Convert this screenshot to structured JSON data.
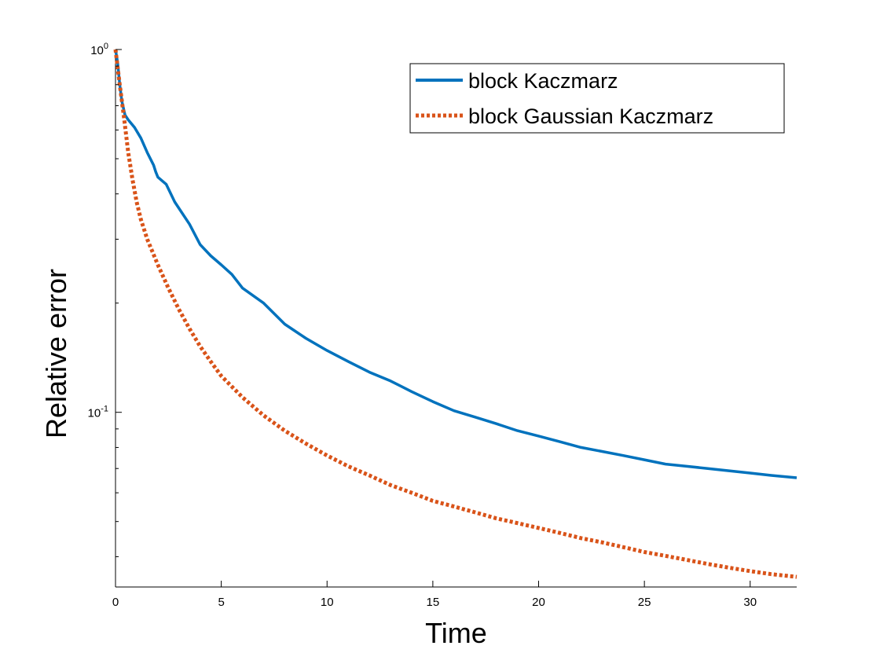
{
  "chart_data": {
    "type": "line",
    "title": "",
    "xlabel": "Time",
    "ylabel": "Relative error",
    "xlim": [
      0,
      32.2
    ],
    "ylim": [
      0.033,
      1.0
    ],
    "yscale": "log",
    "x_ticks": [
      0,
      5,
      10,
      15,
      20,
      25,
      30
    ],
    "y_ticks": [
      {
        "value": 1.0,
        "base": "10",
        "exponent": "0"
      },
      {
        "value": 0.1,
        "base": "10",
        "exponent": "-1"
      }
    ],
    "grid": false,
    "legend_position": "top-right",
    "series": [
      {
        "name": "block Kaczmarz",
        "style": "solid",
        "color": "#0072BD",
        "points": [
          [
            0.0,
            1.0
          ],
          [
            0.1,
            0.92
          ],
          [
            0.2,
            0.8
          ],
          [
            0.3,
            0.72
          ],
          [
            0.45,
            0.66
          ],
          [
            0.6,
            0.64
          ],
          [
            0.9,
            0.61
          ],
          [
            1.2,
            0.57
          ],
          [
            1.5,
            0.52
          ],
          [
            1.8,
            0.48
          ],
          [
            1.9,
            0.46
          ],
          [
            2.0,
            0.445
          ],
          [
            2.4,
            0.425
          ],
          [
            2.8,
            0.38
          ],
          [
            3.5,
            0.33
          ],
          [
            4.0,
            0.29
          ],
          [
            4.5,
            0.27
          ],
          [
            5.0,
            0.255
          ],
          [
            5.5,
            0.24
          ],
          [
            6.0,
            0.22
          ],
          [
            7.0,
            0.2
          ],
          [
            8.0,
            0.175
          ],
          [
            9.0,
            0.16
          ],
          [
            10.0,
            0.148
          ],
          [
            11.0,
            0.138
          ],
          [
            12.0,
            0.129
          ],
          [
            13.0,
            0.122
          ],
          [
            14.0,
            0.114
          ],
          [
            15.0,
            0.107
          ],
          [
            16.0,
            0.101
          ],
          [
            17.0,
            0.097
          ],
          [
            18.0,
            0.093
          ],
          [
            19.0,
            0.089
          ],
          [
            20.0,
            0.086
          ],
          [
            21.0,
            0.083
          ],
          [
            22.0,
            0.08
          ],
          [
            23.0,
            0.078
          ],
          [
            24.0,
            0.076
          ],
          [
            25.0,
            0.074
          ],
          [
            26.0,
            0.072
          ],
          [
            27.0,
            0.071
          ],
          [
            28.0,
            0.07
          ],
          [
            29.0,
            0.069
          ],
          [
            30.0,
            0.068
          ],
          [
            31.0,
            0.067
          ],
          [
            32.2,
            0.066
          ]
        ]
      },
      {
        "name": "block Gaussian Kaczmarz",
        "style": "dotted",
        "color": "#D95319",
        "points": [
          [
            0.0,
            1.0
          ],
          [
            0.2,
            0.8
          ],
          [
            0.4,
            0.65
          ],
          [
            0.6,
            0.52
          ],
          [
            0.8,
            0.44
          ],
          [
            1.0,
            0.38
          ],
          [
            1.2,
            0.34
          ],
          [
            1.5,
            0.3
          ],
          [
            2.0,
            0.255
          ],
          [
            2.5,
            0.22
          ],
          [
            3.0,
            0.192
          ],
          [
            3.5,
            0.17
          ],
          [
            4.0,
            0.152
          ],
          [
            4.5,
            0.138
          ],
          [
            5.0,
            0.126
          ],
          [
            6.0,
            0.11
          ],
          [
            7.0,
            0.098
          ],
          [
            8.0,
            0.089
          ],
          [
            9.0,
            0.082
          ],
          [
            10.0,
            0.076
          ],
          [
            11.0,
            0.071
          ],
          [
            12.0,
            0.067
          ],
          [
            13.0,
            0.063
          ],
          [
            14.0,
            0.06
          ],
          [
            15.0,
            0.057
          ],
          [
            16.0,
            0.055
          ],
          [
            17.0,
            0.053
          ],
          [
            18.0,
            0.051
          ],
          [
            19.0,
            0.0495
          ],
          [
            20.0,
            0.048
          ],
          [
            21.0,
            0.0465
          ],
          [
            22.0,
            0.045
          ],
          [
            23.0,
            0.0438
          ],
          [
            24.0,
            0.0425
          ],
          [
            25.0,
            0.0412
          ],
          [
            26.0,
            0.0402
          ],
          [
            27.0,
            0.0392
          ],
          [
            28.0,
            0.0382
          ],
          [
            29.0,
            0.0373
          ],
          [
            30.0,
            0.0365
          ],
          [
            31.0,
            0.0358
          ],
          [
            32.2,
            0.0352
          ]
        ]
      }
    ]
  }
}
